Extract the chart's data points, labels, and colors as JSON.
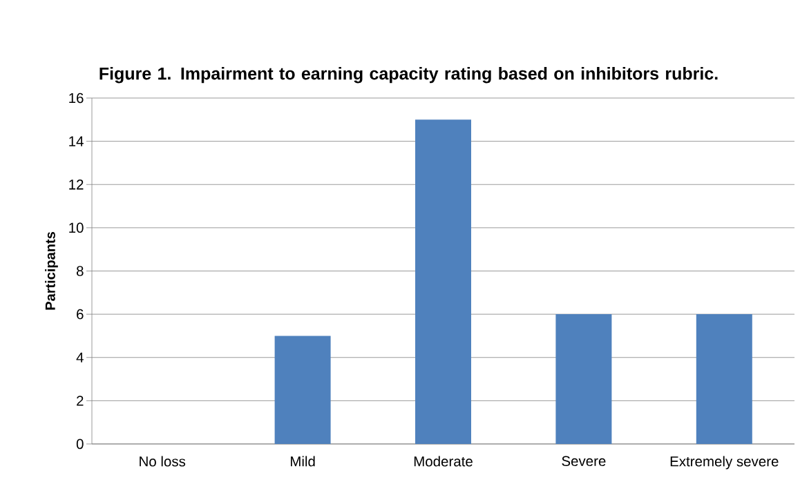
{
  "chart_data": {
    "type": "bar",
    "title": "Figure 1. Impairment to earning capacity rating based on inhibitors rubric.",
    "ylabel": "Participants",
    "categories": [
      "No loss",
      "Mild",
      "Moderate",
      "Severe",
      "Extremely severe"
    ],
    "values": [
      0,
      5,
      15,
      6,
      6
    ],
    "color": "#4f81bd",
    "ylim": [
      0,
      16
    ],
    "yticks": [
      0,
      2,
      4,
      6,
      8,
      10,
      12,
      14,
      16
    ],
    "grid": "y"
  }
}
